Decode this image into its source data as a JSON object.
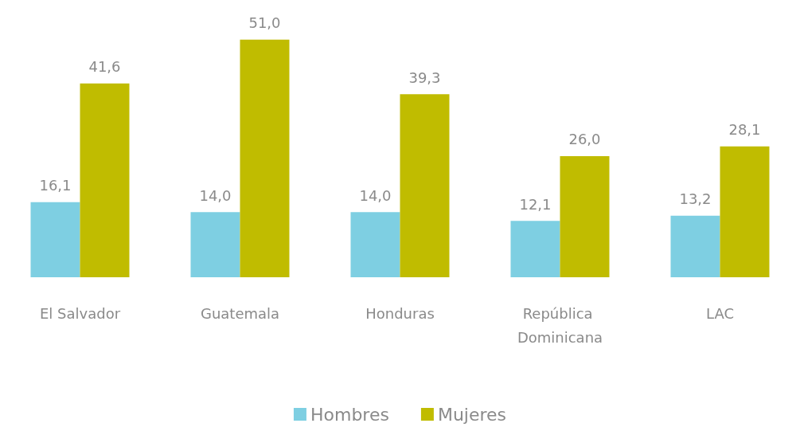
{
  "chart_data": {
    "type": "bar",
    "categories": [
      "El Salvador",
      "Guatemala",
      "Honduras",
      "República Dominicana",
      "LAC"
    ],
    "tick_labels": "x",
    "series": [
      {
        "name": "Hombres",
        "color": "#7ecfe2",
        "values": [
          16.1,
          14.0,
          14.0,
          12.1,
          13.2
        ],
        "value_labels": [
          "16,1",
          "14,0",
          "14,0",
          "12,1",
          "13,2"
        ]
      },
      {
        "name": "Mujeres",
        "color": "#c0bc00",
        "values": [
          41.6,
          51.0,
          39.3,
          26.0,
          28.1
        ],
        "value_labels": [
          "41,6",
          "51,0",
          "39,3",
          "26,0",
          "28,1"
        ]
      }
    ],
    "legend": "bottom"
  }
}
